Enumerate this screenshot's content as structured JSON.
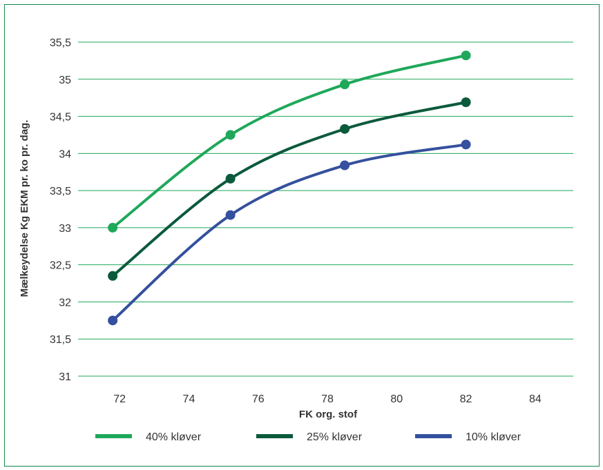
{
  "chart_data": {
    "type": "line",
    "title": "",
    "xlabel": "FK org. stof",
    "ylabel": "Mælkeydelse Kg EKM pr. ko pr. dag.",
    "xlim": [
      70.8,
      85.1
    ],
    "ylim": [
      31,
      35.5
    ],
    "xticks": [
      72,
      74,
      76,
      78,
      80,
      82,
      84
    ],
    "xtick_labels": [
      "72",
      "74",
      "76",
      "78",
      "80",
      "82",
      "84"
    ],
    "yticks": [
      31,
      31.5,
      32,
      32.5,
      33,
      33.5,
      34,
      34.5,
      35,
      35.5
    ],
    "ytick_labels": [
      "31",
      "31,5",
      "32",
      "32,5",
      "33",
      "33,5",
      "34",
      "34,5",
      "35",
      "35,5"
    ],
    "grid": "horizontal",
    "legend_position": "bottom",
    "series": [
      {
        "name": "40% kløver",
        "color": "#1fa85a",
        "x": [
          71.8,
          75.2,
          78.5,
          82.0
        ],
        "y": [
          33.0,
          34.25,
          34.93,
          35.32
        ]
      },
      {
        "name": "25% kløver",
        "color": "#0b5a3c",
        "x": [
          71.8,
          75.2,
          78.5,
          82.0
        ],
        "y": [
          32.35,
          33.66,
          34.33,
          34.69
        ]
      },
      {
        "name": "10% kløver",
        "color": "#34509e",
        "x": [
          71.8,
          75.2,
          78.5,
          82.0
        ],
        "y": [
          31.75,
          33.17,
          33.84,
          34.12
        ]
      }
    ]
  }
}
